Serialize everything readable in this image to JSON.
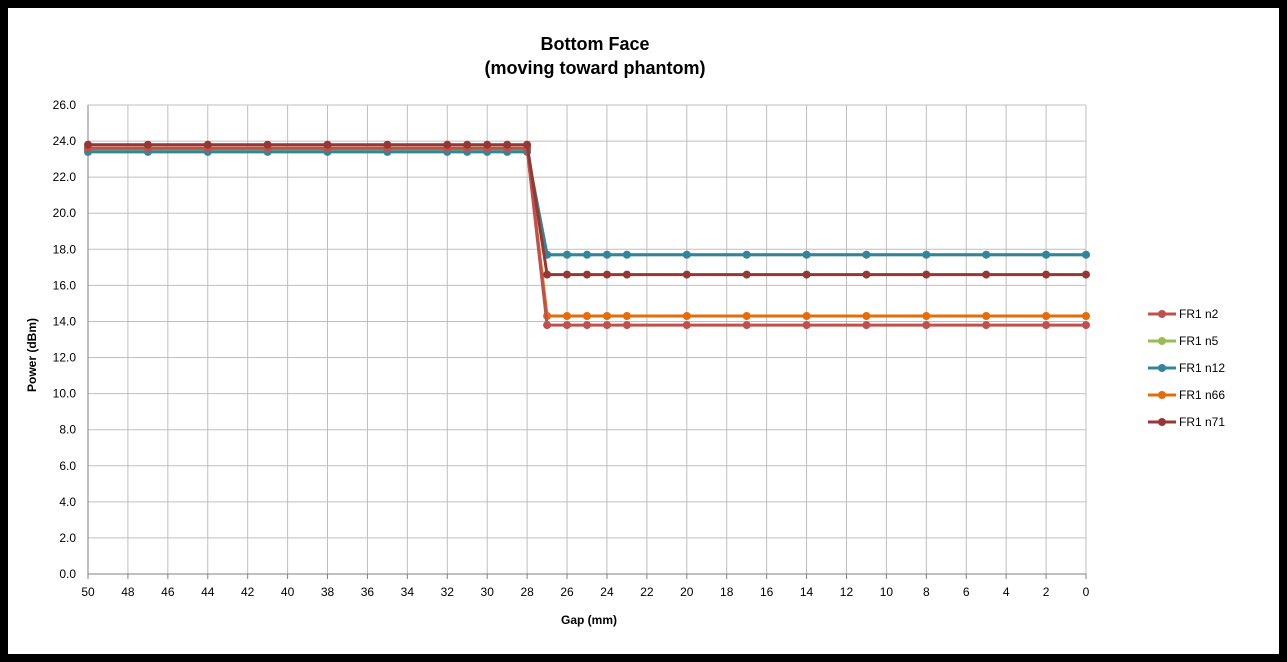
{
  "chart_data": {
    "type": "line",
    "title": "Bottom Face",
    "subtitle": "(moving toward phantom)",
    "xlabel": "Gap (mm)",
    "ylabel": "Power (dBm)",
    "xlim": [
      50,
      0
    ],
    "ylim": [
      0,
      26
    ],
    "x_reversed": true,
    "x_ticks": [
      50,
      48,
      46,
      44,
      42,
      40,
      38,
      36,
      34,
      32,
      30,
      28,
      26,
      24,
      22,
      20,
      18,
      16,
      14,
      12,
      10,
      8,
      6,
      4,
      2,
      0
    ],
    "y_ticks": [
      "0.0",
      "2.0",
      "4.0",
      "6.0",
      "8.0",
      "10.0",
      "12.0",
      "14.0",
      "16.0",
      "18.0",
      "20.0",
      "22.0",
      "24.0",
      "26.0"
    ],
    "grid": true,
    "legend_position": "right",
    "x": [
      50,
      47,
      44,
      41,
      38,
      35,
      32,
      31,
      30,
      29,
      28,
      27,
      26,
      25,
      24,
      23,
      20,
      17,
      14,
      11,
      8,
      5,
      2,
      0
    ],
    "series": [
      {
        "name": "FR1 n2",
        "color": "#C0504D",
        "values": [
          23.6,
          23.6,
          23.6,
          23.6,
          23.6,
          23.6,
          23.6,
          23.6,
          23.6,
          23.6,
          23.6,
          13.8,
          13.8,
          13.8,
          13.8,
          13.8,
          13.8,
          13.8,
          13.8,
          13.8,
          13.8,
          13.8,
          13.8,
          13.8
        ]
      },
      {
        "name": "FR1 n5",
        "color": "#9BBB59",
        "values": [
          23.5,
          23.5,
          23.5,
          23.5,
          23.5,
          23.5,
          23.5,
          23.5,
          23.5,
          23.5,
          23.5,
          17.7,
          17.7,
          17.7,
          17.7,
          17.7,
          17.7,
          17.7,
          17.7,
          17.7,
          17.7,
          17.7,
          17.7,
          17.7
        ]
      },
      {
        "name": "FR1 n12",
        "color": "#31859C",
        "values": [
          23.4,
          23.4,
          23.4,
          23.4,
          23.4,
          23.4,
          23.4,
          23.4,
          23.4,
          23.4,
          23.4,
          17.7,
          17.7,
          17.7,
          17.7,
          17.7,
          17.7,
          17.7,
          17.7,
          17.7,
          17.7,
          17.7,
          17.7,
          17.7
        ]
      },
      {
        "name": "FR1 n66",
        "color": "#E46C0A",
        "values": [
          23.6,
          23.6,
          23.6,
          23.6,
          23.6,
          23.6,
          23.6,
          23.6,
          23.6,
          23.6,
          23.6,
          14.3,
          14.3,
          14.3,
          14.3,
          14.3,
          14.3,
          14.3,
          14.3,
          14.3,
          14.3,
          14.3,
          14.3,
          14.3
        ]
      },
      {
        "name": "FR1 n71",
        "color": "#953735",
        "values": [
          23.8,
          23.8,
          23.8,
          23.8,
          23.8,
          23.8,
          23.8,
          23.8,
          23.8,
          23.8,
          23.8,
          16.6,
          16.6,
          16.6,
          16.6,
          16.6,
          16.6,
          16.6,
          16.6,
          16.6,
          16.6,
          16.6,
          16.6,
          16.6
        ]
      }
    ]
  }
}
